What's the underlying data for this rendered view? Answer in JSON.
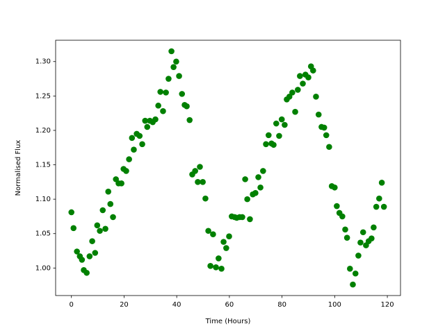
{
  "chart_data": {
    "type": "scatter",
    "xlabel": "Time (Hours)",
    "ylabel": "Normalised Flux",
    "color": "#008000",
    "x": [
      0,
      0.8,
      2.1,
      3.2,
      4,
      4.7,
      5.8,
      6.9,
      7.9,
      9,
      9.8,
      10.8,
      11.9,
      12.9,
      14,
      14.8,
      15.8,
      16.9,
      17.9,
      19,
      19.8,
      20.8,
      21.9,
      23,
      23.7,
      24.8,
      25.9,
      26.9,
      28,
      28.8,
      29.8,
      30.9,
      31.9,
      33,
      33.8,
      34.8,
      35.9,
      36.9,
      38,
      38.8,
      39.8,
      40.9,
      42,
      43,
      43.8,
      44.9,
      45.9,
      47,
      48,
      48.8,
      49.9,
      50.9,
      52,
      52.8,
      53.8,
      54.9,
      55.9,
      57,
      57.8,
      58.8,
      59.9,
      60.9,
      62,
      62.8,
      63.9,
      64.9,
      66,
      66.8,
      67.8,
      68.9,
      69.9,
      71,
      71.8,
      72.8,
      73.9,
      74.9,
      76,
      76.8,
      77.8,
      78.9,
      79.9,
      81,
      81.8,
      82.8,
      83.9,
      85,
      86,
      86.8,
      87.9,
      88.9,
      90,
      91,
      91.8,
      92.9,
      93.9,
      95,
      96,
      96.8,
      97.9,
      98.9,
      100,
      100.8,
      101.8,
      102.9,
      104,
      104.7,
      105.8,
      106.9,
      107.9,
      109,
      109.8,
      110.8,
      111.9,
      112.9,
      114,
      114.8,
      115.8,
      116.9,
      117.9,
      118.7
    ],
    "values": [
      1.081,
      1.058,
      1.024,
      1.017,
      1.012,
      0.997,
      0.993,
      1.017,
      1.039,
      1.022,
      1.062,
      1.054,
      1.084,
      1.057,
      1.111,
      1.093,
      1.074,
      1.129,
      1.123,
      1.123,
      1.144,
      1.141,
      1.158,
      1.189,
      1.172,
      1.195,
      1.192,
      1.18,
      1.214,
      1.205,
      1.214,
      1.212,
      1.216,
      1.236,
      1.256,
      1.228,
      1.255,
      1.275,
      1.315,
      1.292,
      1.3,
      1.279,
      1.253,
      1.237,
      1.235,
      1.215,
      1.136,
      1.141,
      1.125,
      1.147,
      1.125,
      1.101,
      1.054,
      1.003,
      1.049,
      1.001,
      1.014,
      0.999,
      1.038,
      1.029,
      1.046,
      1.075,
      1.074,
      1.073,
      1.074,
      1.074,
      1.129,
      1.1,
      1.071,
      1.107,
      1.109,
      1.132,
      1.117,
      1.141,
      1.18,
      1.193,
      1.181,
      1.179,
      1.21,
      1.192,
      1.216,
      1.208,
      1.245,
      1.249,
      1.255,
      1.227,
      1.259,
      1.279,
      1.268,
      1.281,
      1.277,
      1.293,
      1.287,
      1.249,
      1.223,
      1.205,
      1.204,
      1.193,
      1.176,
      1.119,
      1.117,
      1.09,
      1.08,
      1.075,
      1.056,
      1.044,
      0.999,
      0.976,
      0.992,
      1.018,
      1.037,
      1.052,
      1.033,
      1.039,
      1.043,
      1.059,
      1.089,
      1.101,
      1.124,
      1.089
    ],
    "xlim": [
      -6,
      125
    ],
    "ylim": [
      0.96,
      1.331
    ],
    "xticks": [
      0,
      20,
      40,
      60,
      80,
      100,
      120
    ],
    "yticks": [
      {
        "value": 1,
        "label": "1.00"
      },
      1.05,
      {
        "value": 1.1,
        "label": "1.10"
      },
      1.15,
      {
        "value": 1.2,
        "label": "1.20"
      },
      1.25,
      {
        "value": 1.3,
        "label": "1.30"
      }
    ]
  }
}
